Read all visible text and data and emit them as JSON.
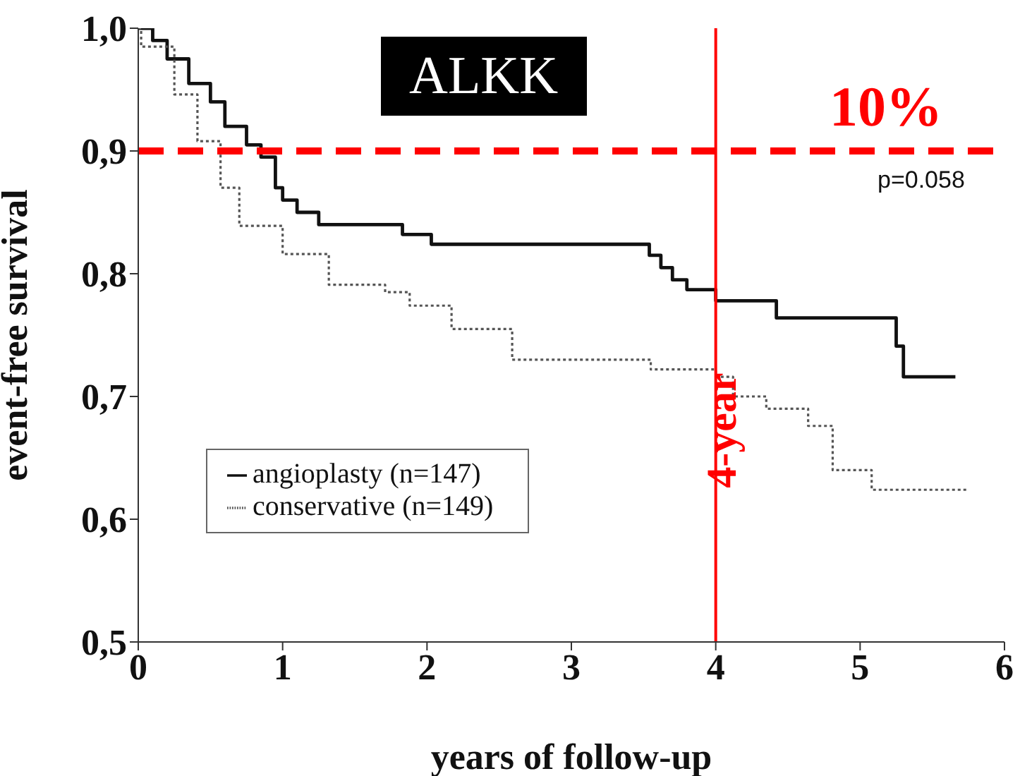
{
  "chart_data": {
    "type": "step",
    "xlabel": "years of follow-up",
    "ylabel": "event-free survival",
    "xlim": [
      0,
      6
    ],
    "xticks": [
      0,
      1,
      2,
      3,
      4,
      5,
      6
    ],
    "ylim": [
      0.5,
      1.0
    ],
    "yticks": [
      {
        "value": 0.5,
        "label": "0,5"
      },
      {
        "value": 0.6,
        "label": "0,6"
      },
      {
        "value": 0.7,
        "label": "0,7"
      },
      {
        "value": 0.8,
        "label": "0,8"
      },
      {
        "value": 0.9,
        "label": "0,9"
      },
      {
        "value": 1.0,
        "label": "1,0"
      }
    ],
    "legend": "bottom left",
    "series": [
      {
        "name": "angioplasty (n=147)",
        "color": "#111111",
        "line_style": "solid",
        "x": [
          0,
          0.1,
          0.2,
          0.35,
          0.5,
          0.6,
          0.75,
          0.85,
          0.95,
          1.0,
          1.1,
          1.25,
          1.83,
          2.03,
          3.54,
          3.62,
          3.7,
          3.8,
          4.0,
          4.42,
          5.25,
          5.3,
          5.66
        ],
        "values": [
          1.0,
          0.99,
          0.975,
          0.955,
          0.94,
          0.92,
          0.905,
          0.895,
          0.87,
          0.86,
          0.85,
          0.84,
          0.832,
          0.824,
          0.815,
          0.805,
          0.795,
          0.787,
          0.778,
          0.764,
          0.741,
          0.716,
          0.716
        ]
      },
      {
        "name": "conservative (n=149)",
        "color": "#555555",
        "line_style": "dotted",
        "x": [
          0,
          0.02,
          0.25,
          0.41,
          0.57,
          0.7,
          1.0,
          1.32,
          1.71,
          1.88,
          2.17,
          2.59,
          3.55,
          4.0,
          4.12,
          4.35,
          4.64,
          4.81,
          5.08,
          5.75
        ],
        "values": [
          1.0,
          0.985,
          0.946,
          0.908,
          0.87,
          0.839,
          0.816,
          0.791,
          0.785,
          0.774,
          0.755,
          0.73,
          0.722,
          0.716,
          0.7,
          0.69,
          0.676,
          0.64,
          0.624,
          0.624
        ]
      }
    ],
    "ref_lines": [
      {
        "axis": "y",
        "value": 0.9,
        "color": "#ff0000",
        "line_style": "dashed"
      },
      {
        "axis": "x",
        "value": 4,
        "label": "4-year",
        "color": "#ff0000",
        "line_style": "solid"
      }
    ],
    "annotations": [
      "ALKK",
      "p=0.058",
      "10%"
    ]
  }
}
